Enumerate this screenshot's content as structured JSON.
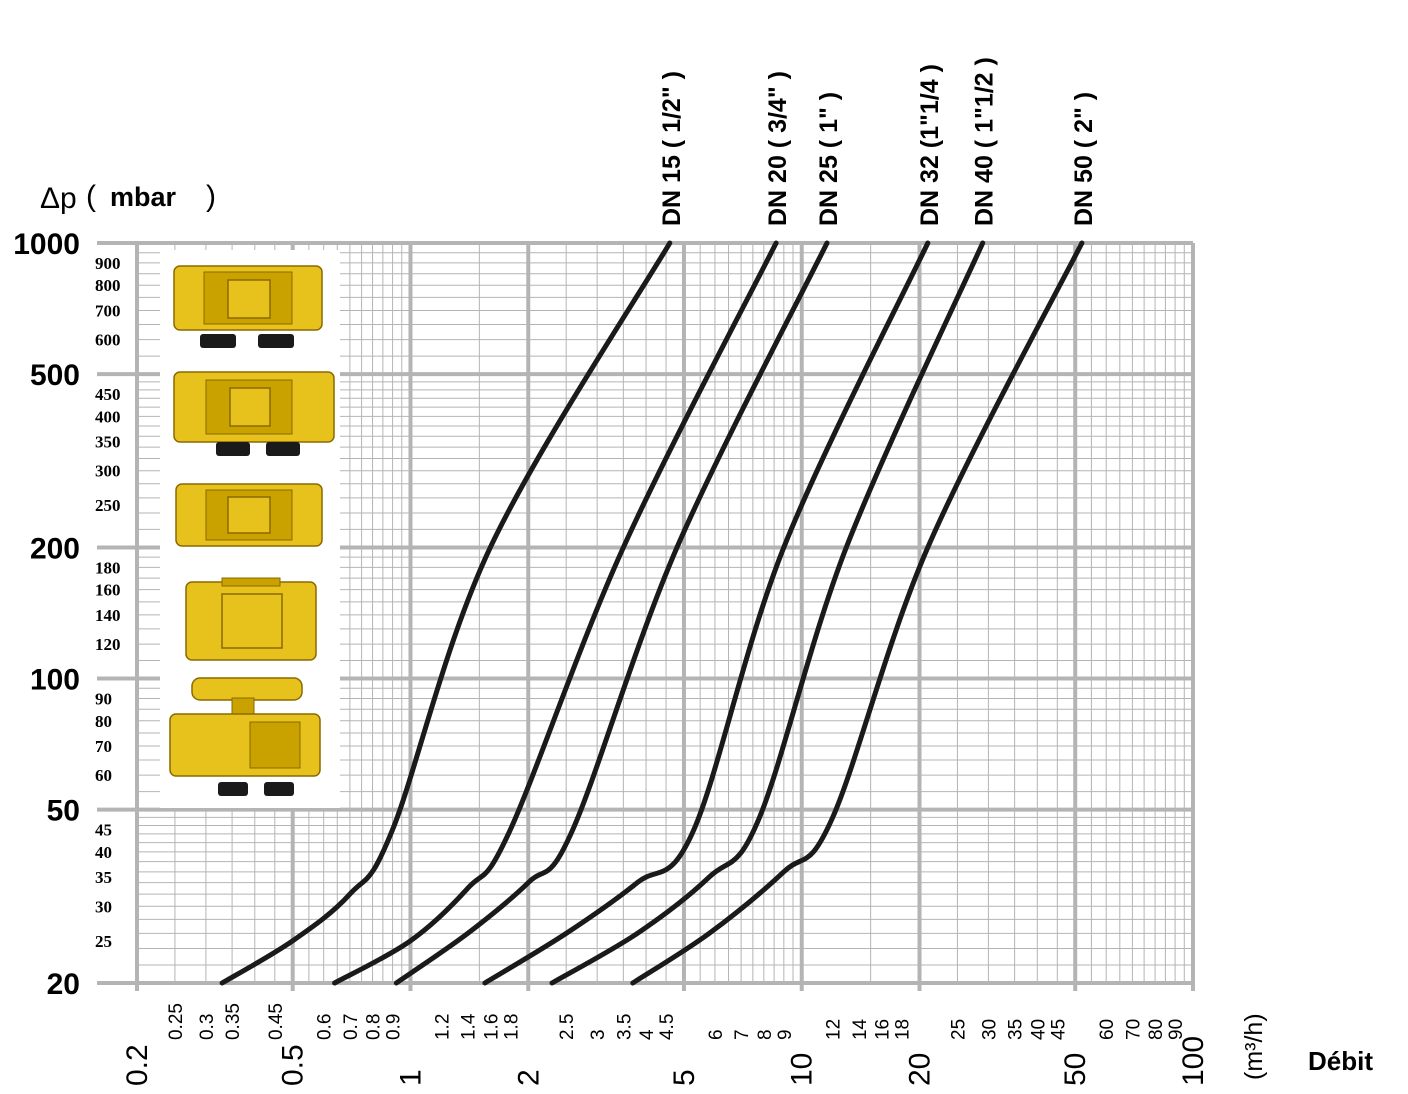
{
  "chart_data": {
    "type": "line",
    "ylabel_symbol": "Δp",
    "ylabel_open": "(",
    "ylabel_unit": "mbar",
    "ylabel_close": ")",
    "xlabel": "Débit",
    "xunit": "(m³/h)",
    "xscale": "log",
    "yscale": "log",
    "xlim": [
      0.2,
      100
    ],
    "ylim": [
      20,
      1000
    ],
    "grid": true,
    "y_major_ticks": [
      "1000",
      "500",
      "200",
      "100",
      "50",
      "20"
    ],
    "y_minor_ticks": [
      "900",
      "800",
      "700",
      "600",
      "450",
      "400",
      "350",
      "300",
      "250",
      "180",
      "160",
      "140",
      "120",
      "90",
      "80",
      "70",
      "60",
      "45",
      "40",
      "35",
      "30",
      "25"
    ],
    "x_major_ticks": [
      "0.2",
      "0.5",
      "1",
      "2",
      "5",
      "10",
      "20",
      "50",
      "100"
    ],
    "x_minor_ticks": [
      "0.25",
      "0.3",
      "0.35",
      "0.45",
      "0.6",
      "0.7",
      "0.8",
      "0.9",
      "1.2",
      "1.4",
      "1.6",
      "1.8",
      "2.5",
      "3",
      "3.5",
      "4",
      "4.5",
      "6",
      "7",
      "8",
      "9",
      "12",
      "14",
      "16",
      "18",
      "25",
      "30",
      "35",
      "40",
      "45",
      "60",
      "70",
      "80",
      "90"
    ],
    "series": [
      {
        "name": "DN 15 ( 1/2\" )",
        "x": [
          0.33,
          0.5,
          0.7,
          0.9,
          1.6,
          4.6
        ],
        "y": [
          20,
          25,
          32,
          45,
          200,
          1000
        ]
      },
      {
        "name": "DN 20 ( 3/4\" )",
        "x": [
          0.64,
          1.0,
          1.4,
          1.8,
          3.5,
          8.6
        ],
        "y": [
          20,
          25,
          33,
          45,
          200,
          1000
        ]
      },
      {
        "name": "DN 25 ( 1\" )",
        "x": [
          0.92,
          1.4,
          2.0,
          2.6,
          4.8,
          11.6
        ],
        "y": [
          20,
          26,
          34,
          45,
          200,
          1000
        ]
      },
      {
        "name": "DN 32 (1\"1/4 )",
        "x": [
          1.55,
          2.5,
          3.8,
          5.3,
          9.0,
          21.0
        ],
        "y": [
          20,
          26,
          34,
          45,
          200,
          1000
        ]
      },
      {
        "name": "DN 40 ( 1\"1/2 )",
        "x": [
          2.3,
          3.8,
          5.8,
          7.8,
          13.0,
          29.0
        ],
        "y": [
          20,
          26,
          35,
          48,
          200,
          1000
        ]
      },
      {
        "name": "DN 50 ( 2\" )",
        "x": [
          3.7,
          5.8,
          9.0,
          12.0,
          21.0,
          52.0
        ],
        "y": [
          20,
          26,
          36,
          48,
          200,
          1000
        ]
      }
    ]
  }
}
